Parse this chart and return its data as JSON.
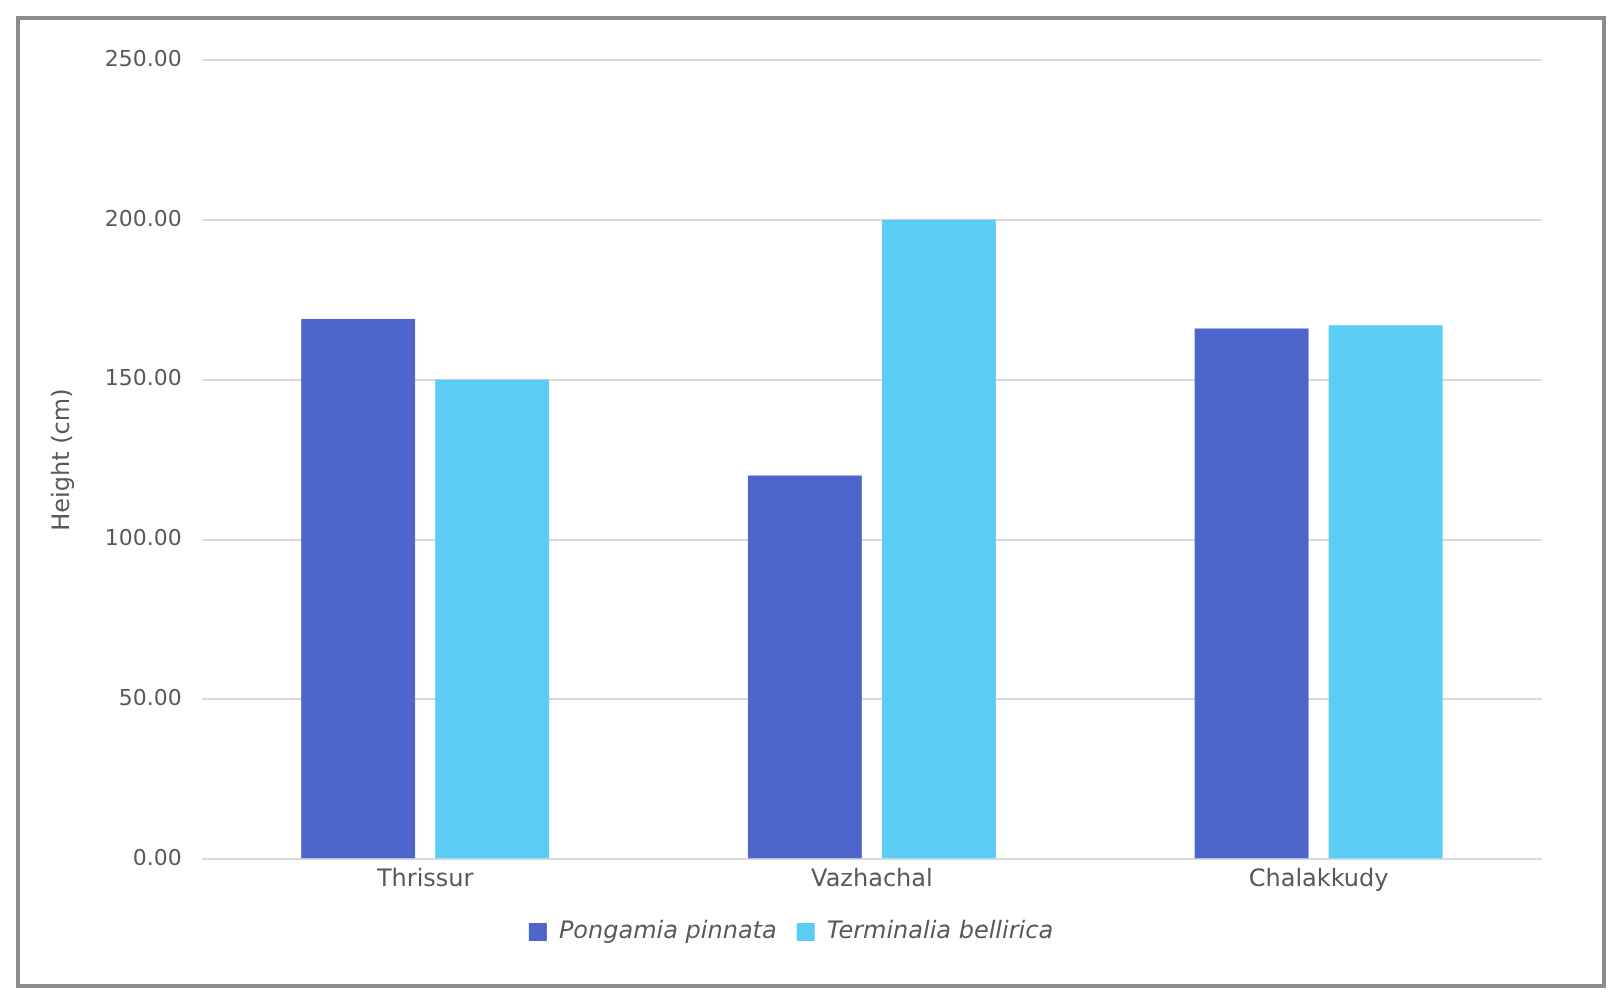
{
  "chart_data": {
    "type": "bar",
    "ylabel": "Height (cm)",
    "categories": [
      "Thrissur",
      "Vazhachal",
      "Chalakkudy"
    ],
    "series": [
      {
        "name": "Pongamia pinnata",
        "color": "#4e65cc",
        "values": [
          169,
          120,
          166
        ]
      },
      {
        "name": "Terminalia bellirica",
        "color": "#5bcdf5",
        "values": [
          150,
          200,
          167
        ]
      }
    ],
    "ylim": [
      0,
      250
    ],
    "yticks": [
      {
        "value": 0,
        "label": "0.00"
      },
      {
        "value": 50,
        "label": "50.00"
      },
      {
        "value": 100,
        "label": "100.00"
      },
      {
        "value": 150,
        "label": "150.00"
      },
      {
        "value": 200,
        "label": "200.00"
      },
      {
        "value": 250,
        "label": "250.00"
      }
    ],
    "grid": "y",
    "legend": "bottom"
  }
}
